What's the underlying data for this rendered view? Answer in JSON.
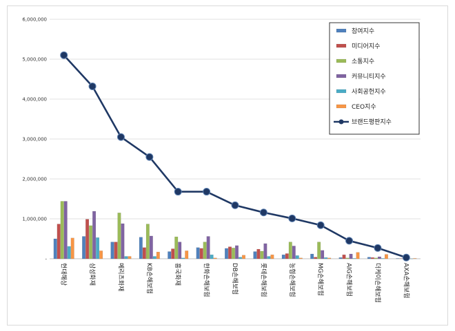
{
  "chart_data": {
    "type": "bar",
    "categories": [
      "현대해상",
      "삼성화재",
      "메리츠화재",
      "KB손해보험",
      "흥국화재",
      "한화손해보험",
      "DB손해보험",
      "롯데손해보험",
      "농협손해보험",
      "MG손해보험",
      "AIG손해보험",
      "더케이손해보험",
      "AXA손해보험"
    ],
    "y_ticks": [
      "6,000,000",
      "5,000,000",
      "4,000,000",
      "3,000,000",
      "2,000,000",
      "1,000,000",
      "-"
    ],
    "ylim": [
      0,
      6000000
    ],
    "grid": true,
    "legend_position": "top-right",
    "series": [
      {
        "name": "참여지수",
        "kind": "bar",
        "color": "#4f81bd",
        "values": [
          500000,
          560000,
          420000,
          540000,
          180000,
          280000,
          260000,
          180000,
          100000,
          120000,
          30000,
          40000,
          8000
        ]
      },
      {
        "name": "미디어지수",
        "kind": "bar",
        "color": "#c0504d",
        "values": [
          870000,
          990000,
          420000,
          280000,
          250000,
          260000,
          300000,
          240000,
          130000,
          40000,
          100000,
          30000,
          5000
        ]
      },
      {
        "name": "소통지수",
        "kind": "bar",
        "color": "#9bbb59",
        "values": [
          1440000,
          830000,
          1150000,
          870000,
          550000,
          420000,
          270000,
          190000,
          420000,
          420000,
          20000,
          20000,
          5000
        ]
      },
      {
        "name": "커뮤니티지수",
        "kind": "bar",
        "color": "#8064a2",
        "values": [
          1440000,
          1190000,
          880000,
          570000,
          420000,
          560000,
          330000,
          380000,
          320000,
          210000,
          120000,
          50000,
          8000
        ]
      },
      {
        "name": "사회공헌지수",
        "kind": "bar",
        "color": "#4bacc6",
        "values": [
          310000,
          530000,
          60000,
          60000,
          20000,
          100000,
          40000,
          60000,
          80000,
          30000,
          10000,
          10000,
          2000
        ]
      },
      {
        "name": "CEO지수",
        "kind": "bar",
        "color": "#f79646",
        "values": [
          520000,
          200000,
          60000,
          170000,
          200000,
          20000,
          90000,
          100000,
          20000,
          20000,
          160000,
          110000,
          10000
        ]
      },
      {
        "name": "브랜드평판지수",
        "kind": "line",
        "color": "#1f3864",
        "values": [
          5100000,
          4320000,
          3050000,
          2550000,
          1680000,
          1680000,
          1340000,
          1160000,
          1010000,
          840000,
          450000,
          270000,
          30000
        ]
      }
    ]
  }
}
